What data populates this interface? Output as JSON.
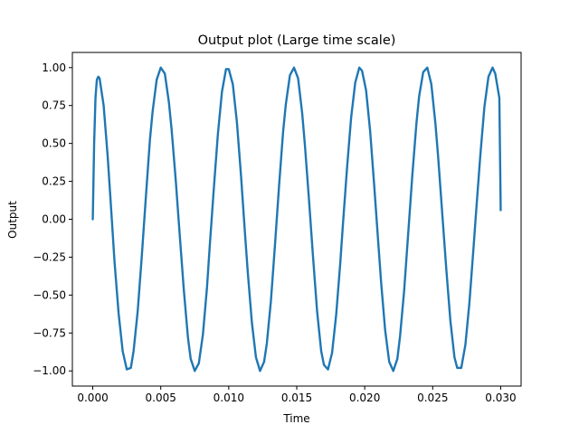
{
  "chart_data": {
    "type": "line",
    "title": "Output plot (Large time scale)",
    "xlabel": "Time",
    "ylabel": "Output",
    "xlim": [
      -0.0015,
      0.0315
    ],
    "ylim": [
      -1.1,
      1.1
    ],
    "xticks": [
      0.0,
      0.005,
      0.01,
      0.015,
      0.02,
      0.025,
      0.03
    ],
    "xtick_labels": [
      "0.000",
      "0.005",
      "0.010",
      "0.015",
      "0.020",
      "0.025",
      "0.030"
    ],
    "yticks": [
      -1.0,
      -0.75,
      -0.5,
      -0.25,
      0.0,
      0.25,
      0.5,
      0.75,
      1.0
    ],
    "ytick_labels": [
      "−1.00",
      "−0.75",
      "−0.50",
      "−0.25",
      "0.00",
      "0.25",
      "0.50",
      "0.75",
      "1.00"
    ],
    "grid": false,
    "series": [
      {
        "color": "#1f77b4",
        "x": [
          0.0,
          0.0001,
          0.0002,
          0.0003,
          0.0004,
          0.0005,
          0.0008,
          0.0011,
          0.0014,
          0.0016,
          0.0019,
          0.0022,
          0.0025,
          0.0028,
          0.003,
          0.0033,
          0.0036,
          0.0039,
          0.0042,
          0.0044,
          0.0047,
          0.005,
          0.0053,
          0.0056,
          0.0058,
          0.0061,
          0.0064,
          0.0067,
          0.007,
          0.0072,
          0.0075,
          0.0078,
          0.0081,
          0.0084,
          0.0086,
          0.0089,
          0.0092,
          0.0095,
          0.0098,
          0.01,
          0.0103,
          0.0106,
          0.0109,
          0.0112,
          0.0114,
          0.0117,
          0.012,
          0.0123,
          0.0126,
          0.0128,
          0.0131,
          0.0134,
          0.0137,
          0.014,
          0.0142,
          0.0145,
          0.0148,
          0.0151,
          0.0154,
          0.0156,
          0.0159,
          0.0162,
          0.0165,
          0.0168,
          0.017,
          0.0173,
          0.0176,
          0.0179,
          0.0182,
          0.0184,
          0.0187,
          0.019,
          0.0193,
          0.0196,
          0.0198,
          0.0201,
          0.0204,
          0.0207,
          0.021,
          0.0212,
          0.0215,
          0.0218,
          0.0221,
          0.0224,
          0.0226,
          0.0229,
          0.0232,
          0.0235,
          0.0238,
          0.024,
          0.0243,
          0.0246,
          0.0249,
          0.0252,
          0.0254,
          0.0257,
          0.026,
          0.0263,
          0.0266,
          0.0268,
          0.0271,
          0.0274,
          0.0277,
          0.028,
          0.0282,
          0.0285,
          0.0288,
          0.0291,
          0.0294,
          0.0296,
          0.0299,
          0.03
        ],
        "y": [
          0.0,
          0.5,
          0.8,
          0.92,
          0.94,
          0.93,
          0.75,
          0.41,
          0.0,
          -0.28,
          -0.62,
          -0.87,
          -0.99,
          -0.98,
          -0.87,
          -0.61,
          -0.25,
          0.14,
          0.52,
          0.71,
          0.92,
          1.0,
          0.96,
          0.77,
          0.59,
          0.26,
          -0.11,
          -0.47,
          -0.78,
          -0.92,
          -1.0,
          -0.95,
          -0.76,
          -0.45,
          -0.18,
          0.2,
          0.56,
          0.84,
          0.99,
          0.99,
          0.89,
          0.64,
          0.29,
          -0.1,
          -0.35,
          -0.68,
          -0.91,
          -1.0,
          -0.94,
          -0.82,
          -0.54,
          -0.17,
          0.22,
          0.58,
          0.76,
          0.95,
          1.0,
          0.93,
          0.7,
          0.49,
          0.13,
          -0.25,
          -0.61,
          -0.87,
          -0.96,
          -0.99,
          -0.88,
          -0.63,
          -0.29,
          -0.03,
          0.34,
          0.67,
          0.9,
          1.0,
          0.98,
          0.85,
          0.58,
          0.22,
          -0.16,
          -0.41,
          -0.73,
          -0.94,
          -1.0,
          -0.92,
          -0.77,
          -0.47,
          -0.09,
          0.29,
          0.63,
          0.81,
          0.97,
          1.0,
          0.89,
          0.63,
          0.41,
          0.04,
          -0.33,
          -0.67,
          -0.91,
          -0.98,
          -0.98,
          -0.83,
          -0.55,
          -0.19,
          0.06,
          0.42,
          0.74,
          0.94,
          1.0,
          0.96,
          0.8,
          0.06
        ]
      }
    ]
  }
}
